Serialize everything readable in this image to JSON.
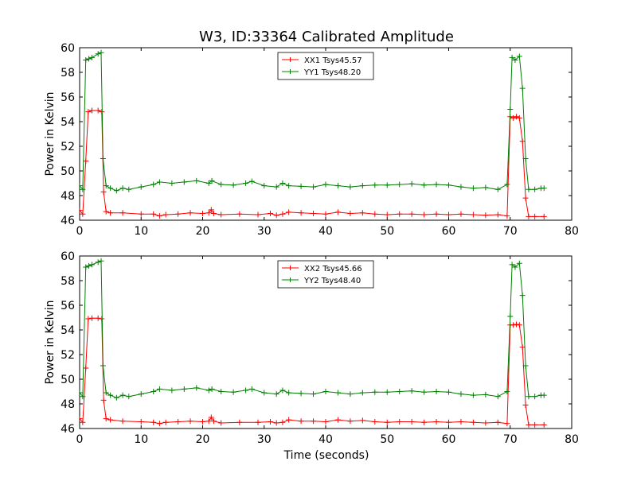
{
  "figure": {
    "title": "W3, ID:33364 Calibrated Amplitude",
    "xlabel": "Time (seconds)"
  },
  "chart_data": [
    {
      "type": "line",
      "ylabel": "Power in Kelvin",
      "xlim": [
        0,
        80
      ],
      "ylim": [
        46,
        60
      ],
      "xticks": [
        "0",
        "10",
        "20",
        "30",
        "40",
        "50",
        "60",
        "70",
        "80"
      ],
      "yticks": [
        "46",
        "48",
        "50",
        "52",
        "54",
        "56",
        "58",
        "60"
      ],
      "legend_placement": "top-center",
      "series": [
        {
          "name": "XX1 Tsys45.57",
          "color": "#ff0000",
          "points": [
            [
              0,
              46.8
            ],
            [
              0.5,
              46.5
            ],
            [
              1.0,
              50.8
            ],
            [
              1.4,
              54.8
            ],
            [
              2,
              54.9
            ],
            [
              3,
              54.9
            ],
            [
              3.6,
              54.8
            ],
            [
              3.9,
              48.3
            ],
            [
              4.3,
              46.7
            ],
            [
              5,
              46.6
            ],
            [
              7,
              46.6
            ],
            [
              10,
              46.5
            ],
            [
              12,
              46.5
            ],
            [
              13,
              46.35
            ],
            [
              14,
              46.45
            ],
            [
              16,
              46.5
            ],
            [
              18,
              46.6
            ],
            [
              20,
              46.55
            ],
            [
              21,
              46.6
            ],
            [
              21.4,
              46.85
            ],
            [
              21.8,
              46.55
            ],
            [
              23,
              46.45
            ],
            [
              26,
              46.5
            ],
            [
              29,
              46.45
            ],
            [
              31,
              46.55
            ],
            [
              32,
              46.4
            ],
            [
              33,
              46.5
            ],
            [
              34,
              46.65
            ],
            [
              36,
              46.6
            ],
            [
              38,
              46.55
            ],
            [
              40,
              46.5
            ],
            [
              42,
              46.65
            ],
            [
              44,
              46.55
            ],
            [
              46,
              46.6
            ],
            [
              48,
              46.5
            ],
            [
              50,
              46.45
            ],
            [
              52,
              46.5
            ],
            [
              54,
              46.5
            ],
            [
              56,
              46.45
            ],
            [
              58,
              46.5
            ],
            [
              60,
              46.45
            ],
            [
              62,
              46.5
            ],
            [
              64,
              46.45
            ],
            [
              66,
              46.4
            ],
            [
              68,
              46.45
            ],
            [
              69.5,
              46.35
            ],
            [
              70,
              54.4
            ],
            [
              70.5,
              54.3
            ],
            [
              71,
              54.4
            ],
            [
              71.5,
              54.3
            ],
            [
              72,
              52.4
            ],
            [
              72.5,
              47.8
            ],
            [
              73,
              46.3
            ],
            [
              74,
              46.3
            ],
            [
              75.5,
              46.3
            ]
          ]
        },
        {
          "name": "YY1 Tsys48.20",
          "color": "#008000",
          "points": [
            [
              0,
              48.8
            ],
            [
              0.5,
              48.5
            ],
            [
              1.0,
              59.0
            ],
            [
              1.5,
              59.1
            ],
            [
              2,
              59.2
            ],
            [
              3,
              59.5
            ],
            [
              3.5,
              59.6
            ],
            [
              3.8,
              51.0
            ],
            [
              4.3,
              48.8
            ],
            [
              5,
              48.6
            ],
            [
              6,
              48.4
            ],
            [
              7,
              48.6
            ],
            [
              8,
              48.5
            ],
            [
              10,
              48.7
            ],
            [
              12,
              48.9
            ],
            [
              13,
              49.1
            ],
            [
              15,
              49.0
            ],
            [
              17,
              49.1
            ],
            [
              19,
              49.2
            ],
            [
              21,
              49.0
            ],
            [
              21.5,
              49.2
            ],
            [
              23,
              48.9
            ],
            [
              25,
              48.85
            ],
            [
              27,
              49.0
            ],
            [
              28,
              49.15
            ],
            [
              30,
              48.8
            ],
            [
              32,
              48.7
            ],
            [
              33,
              49.0
            ],
            [
              34,
              48.8
            ],
            [
              36,
              48.75
            ],
            [
              38,
              48.7
            ],
            [
              40,
              48.9
            ],
            [
              42,
              48.8
            ],
            [
              44,
              48.7
            ],
            [
              46,
              48.8
            ],
            [
              48,
              48.85
            ],
            [
              50,
              48.85
            ],
            [
              52,
              48.9
            ],
            [
              54,
              48.95
            ],
            [
              56,
              48.85
            ],
            [
              58,
              48.9
            ],
            [
              60,
              48.85
            ],
            [
              62,
              48.7
            ],
            [
              64,
              48.6
            ],
            [
              66,
              48.65
            ],
            [
              68,
              48.5
            ],
            [
              69.5,
              48.9
            ],
            [
              70,
              55.0
            ],
            [
              70.3,
              59.2
            ],
            [
              70.8,
              59.0
            ],
            [
              71.5,
              59.3
            ],
            [
              72,
              56.7
            ],
            [
              72.5,
              51.0
            ],
            [
              73,
              48.5
            ],
            [
              74,
              48.5
            ],
            [
              75,
              48.6
            ],
            [
              75.5,
              48.6
            ]
          ]
        }
      ]
    },
    {
      "type": "line",
      "ylabel": "Power in Kelvin",
      "xlim": [
        0,
        80
      ],
      "ylim": [
        46,
        60
      ],
      "xticks": [
        "0",
        "10",
        "20",
        "30",
        "40",
        "50",
        "60",
        "70",
        "80"
      ],
      "yticks": [
        "46",
        "48",
        "50",
        "52",
        "54",
        "56",
        "58",
        "60"
      ],
      "legend_placement": "top-center",
      "series": [
        {
          "name": "XX2 Tsys45.66",
          "color": "#ff0000",
          "points": [
            [
              0,
              46.8
            ],
            [
              0.5,
              46.5
            ],
            [
              1.0,
              50.9
            ],
            [
              1.4,
              54.9
            ],
            [
              2,
              54.95
            ],
            [
              3,
              54.95
            ],
            [
              3.6,
              54.9
            ],
            [
              3.9,
              48.3
            ],
            [
              4.3,
              46.8
            ],
            [
              5,
              46.7
            ],
            [
              7,
              46.6
            ],
            [
              10,
              46.55
            ],
            [
              12,
              46.5
            ],
            [
              13,
              46.4
            ],
            [
              14,
              46.5
            ],
            [
              16,
              46.55
            ],
            [
              18,
              46.6
            ],
            [
              20,
              46.55
            ],
            [
              21,
              46.6
            ],
            [
              21.4,
              46.9
            ],
            [
              21.8,
              46.6
            ],
            [
              23,
              46.45
            ],
            [
              26,
              46.5
            ],
            [
              29,
              46.5
            ],
            [
              31,
              46.55
            ],
            [
              32,
              46.45
            ],
            [
              33,
              46.5
            ],
            [
              34,
              46.7
            ],
            [
              36,
              46.6
            ],
            [
              38,
              46.6
            ],
            [
              40,
              46.55
            ],
            [
              42,
              46.7
            ],
            [
              44,
              46.6
            ],
            [
              46,
              46.65
            ],
            [
              48,
              46.55
            ],
            [
              50,
              46.5
            ],
            [
              52,
              46.55
            ],
            [
              54,
              46.55
            ],
            [
              56,
              46.5
            ],
            [
              58,
              46.55
            ],
            [
              60,
              46.5
            ],
            [
              62,
              46.55
            ],
            [
              64,
              46.5
            ],
            [
              66,
              46.45
            ],
            [
              68,
              46.5
            ],
            [
              69.5,
              46.4
            ],
            [
              70,
              54.4
            ],
            [
              70.5,
              54.4
            ],
            [
              71,
              54.45
            ],
            [
              71.5,
              54.4
            ],
            [
              72,
              52.6
            ],
            [
              72.5,
              47.9
            ],
            [
              73,
              46.3
            ],
            [
              74,
              46.3
            ],
            [
              75.5,
              46.3
            ]
          ]
        },
        {
          "name": "YY2 Tsys48.40",
          "color": "#008000",
          "points": [
            [
              0,
              48.9
            ],
            [
              0.5,
              48.6
            ],
            [
              1.0,
              59.1
            ],
            [
              1.5,
              59.2
            ],
            [
              2,
              59.3
            ],
            [
              3,
              59.5
            ],
            [
              3.5,
              59.6
            ],
            [
              3.8,
              51.1
            ],
            [
              4.3,
              48.9
            ],
            [
              5,
              48.7
            ],
            [
              6,
              48.5
            ],
            [
              7,
              48.7
            ],
            [
              8,
              48.6
            ],
            [
              10,
              48.8
            ],
            [
              12,
              49.0
            ],
            [
              13,
              49.2
            ],
            [
              15,
              49.1
            ],
            [
              17,
              49.2
            ],
            [
              19,
              49.3
            ],
            [
              21,
              49.1
            ],
            [
              21.5,
              49.2
            ],
            [
              23,
              49.0
            ],
            [
              25,
              48.95
            ],
            [
              27,
              49.1
            ],
            [
              28,
              49.2
            ],
            [
              30,
              48.9
            ],
            [
              32,
              48.8
            ],
            [
              33,
              49.1
            ],
            [
              34,
              48.9
            ],
            [
              36,
              48.85
            ],
            [
              38,
              48.8
            ],
            [
              40,
              49.0
            ],
            [
              42,
              48.9
            ],
            [
              44,
              48.8
            ],
            [
              46,
              48.9
            ],
            [
              48,
              48.95
            ],
            [
              50,
              48.95
            ],
            [
              52,
              49.0
            ],
            [
              54,
              49.05
            ],
            [
              56,
              48.95
            ],
            [
              58,
              49.0
            ],
            [
              60,
              48.95
            ],
            [
              62,
              48.8
            ],
            [
              64,
              48.7
            ],
            [
              66,
              48.75
            ],
            [
              68,
              48.6
            ],
            [
              69.5,
              49.0
            ],
            [
              70,
              55.1
            ],
            [
              70.3,
              59.3
            ],
            [
              70.8,
              59.1
            ],
            [
              71.5,
              59.4
            ],
            [
              72,
              56.8
            ],
            [
              72.5,
              51.1
            ],
            [
              73,
              48.6
            ],
            [
              74,
              48.6
            ],
            [
              75,
              48.7
            ],
            [
              75.5,
              48.7
            ]
          ]
        }
      ]
    }
  ]
}
